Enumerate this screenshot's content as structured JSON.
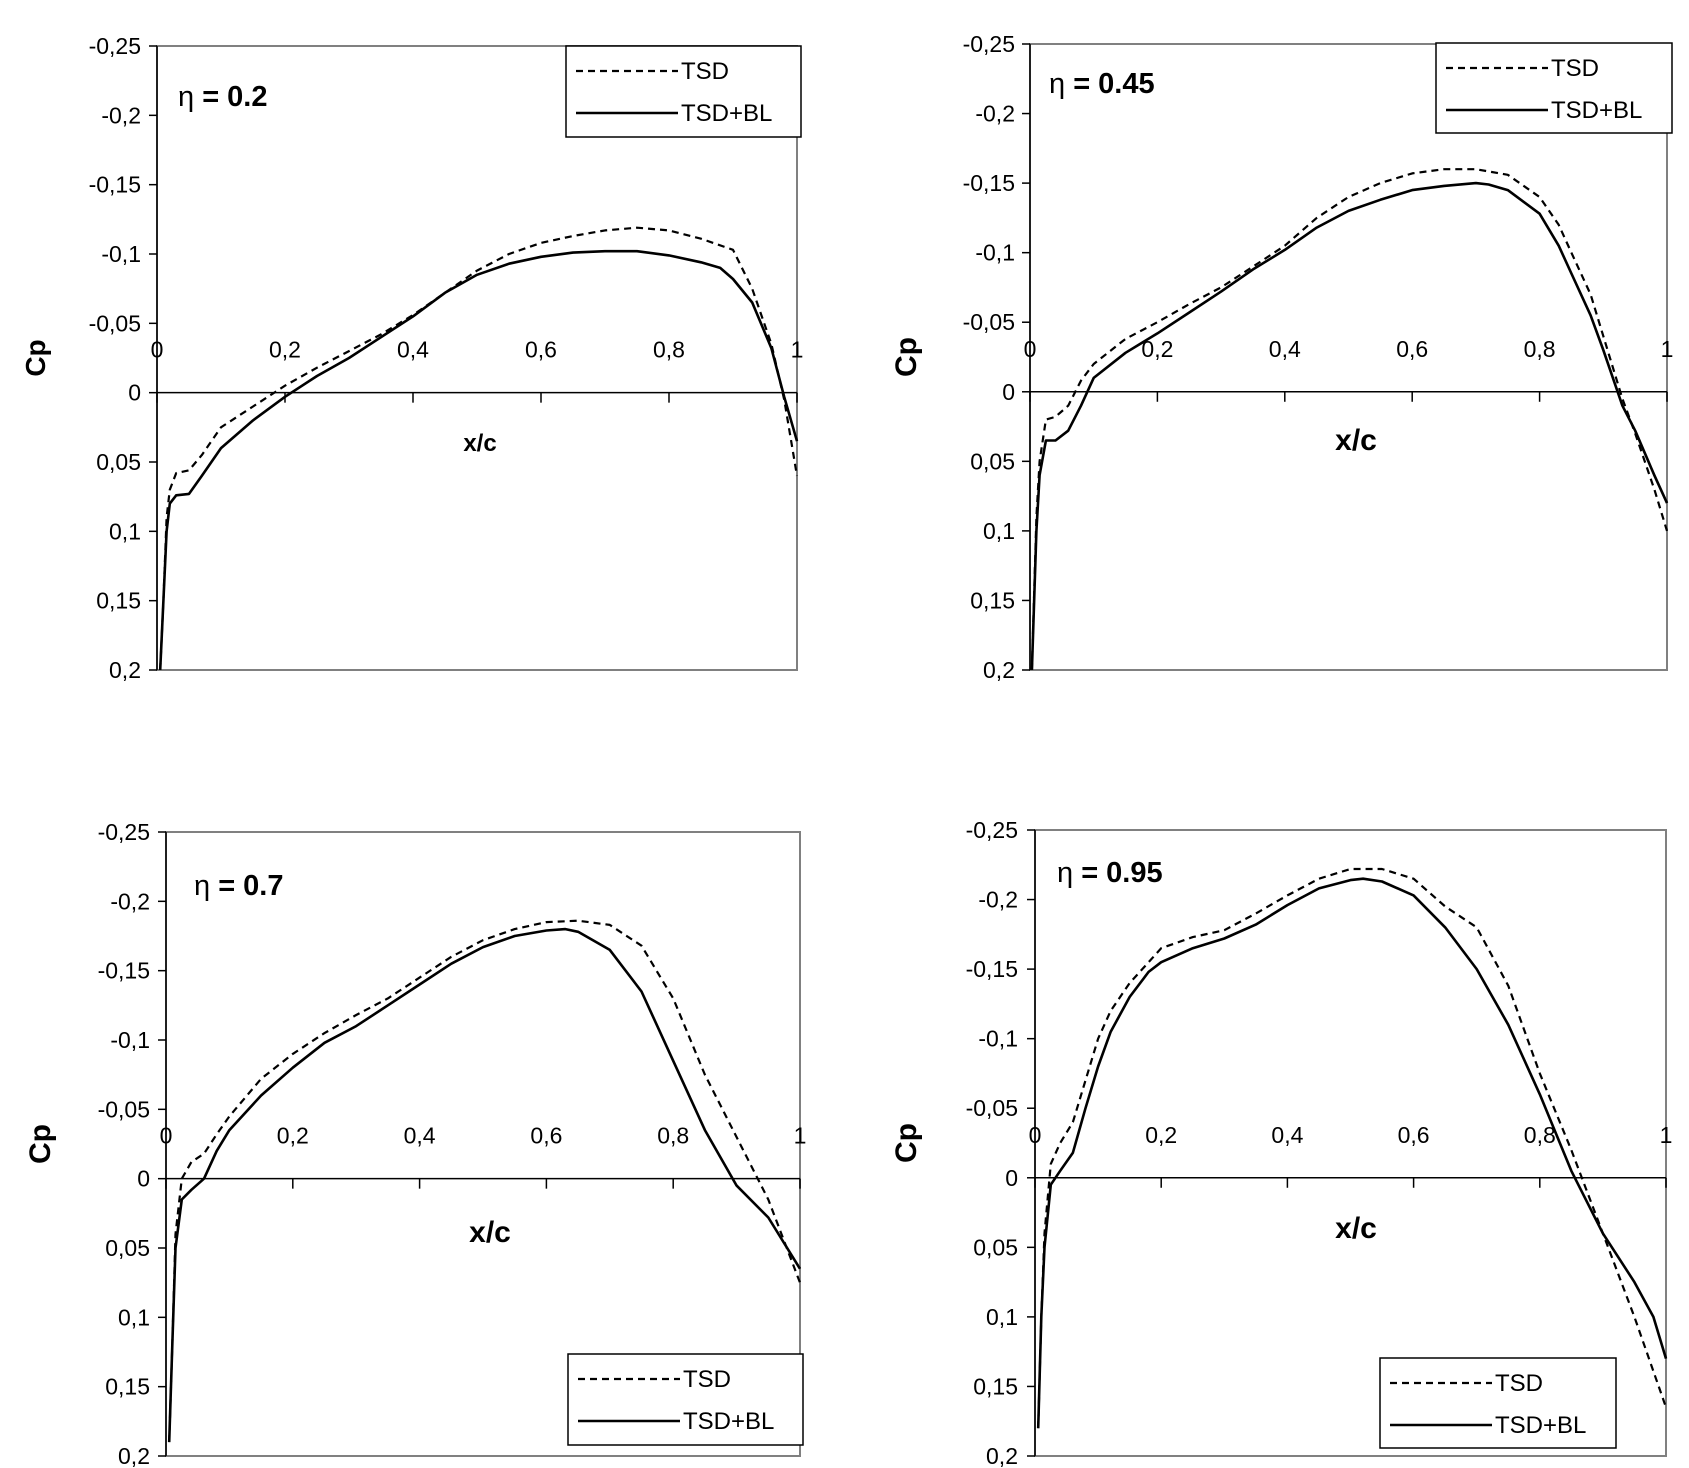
{
  "chart_data": [
    {
      "type": "line",
      "panel_label": "η = 0.2",
      "xlabel": "x/c",
      "ylabel": "Cp",
      "xlim": [
        0,
        1
      ],
      "ylim": [
        0.2,
        -0.25
      ],
      "y_inverted": true,
      "x_ticks": [
        "0",
        "0,2",
        "0,4",
        "0,6",
        "0,8",
        "1"
      ],
      "y_ticks": [
        "-0,25",
        "-0,2",
        "-0,15",
        "-0,1",
        "-0,05",
        "0",
        "0,05",
        "0,1",
        "0,15",
        "0,2"
      ],
      "legend_position": "top-right",
      "grid": false,
      "series": [
        {
          "name": "TSD",
          "style": "dashed",
          "x": [
            0.005,
            0.01,
            0.015,
            0.02,
            0.03,
            0.05,
            0.07,
            0.1,
            0.15,
            0.2,
            0.25,
            0.3,
            0.35,
            0.4,
            0.45,
            0.5,
            0.55,
            0.6,
            0.65,
            0.7,
            0.75,
            0.8,
            0.85,
            0.9,
            0.93,
            0.96,
            0.98,
            1.0
          ],
          "y": [
            0.2,
            0.15,
            0.09,
            0.07,
            0.058,
            0.056,
            0.045,
            0.025,
            0.01,
            -0.005,
            -0.018,
            -0.03,
            -0.042,
            -0.056,
            -0.072,
            -0.088,
            -0.1,
            -0.108,
            -0.113,
            -0.117,
            -0.119,
            -0.117,
            -0.111,
            -0.103,
            -0.075,
            -0.035,
            0.005,
            0.06
          ]
        },
        {
          "name": "TSD+BL",
          "style": "solid",
          "x": [
            0.005,
            0.01,
            0.015,
            0.02,
            0.03,
            0.05,
            0.07,
            0.1,
            0.15,
            0.2,
            0.25,
            0.3,
            0.35,
            0.4,
            0.45,
            0.5,
            0.55,
            0.6,
            0.65,
            0.7,
            0.75,
            0.8,
            0.85,
            0.88,
            0.9,
            0.93,
            0.96,
            0.98,
            1.0
          ],
          "y": [
            0.2,
            0.15,
            0.1,
            0.08,
            0.074,
            0.073,
            0.06,
            0.04,
            0.02,
            0.003,
            -0.012,
            -0.025,
            -0.04,
            -0.055,
            -0.072,
            -0.085,
            -0.093,
            -0.098,
            -0.101,
            -0.102,
            -0.102,
            -0.099,
            -0.094,
            -0.09,
            -0.082,
            -0.065,
            -0.032,
            0.003,
            0.035
          ]
        }
      ]
    },
    {
      "type": "line",
      "panel_label": "η = 0.45",
      "xlabel": "x/c",
      "ylabel": "Cp",
      "xlim": [
        0,
        1
      ],
      "ylim": [
        0.2,
        -0.25
      ],
      "y_inverted": true,
      "x_ticks": [
        "0",
        "0,2",
        "0,4",
        "0,6",
        "0,8",
        "1"
      ],
      "y_ticks": [
        "-0,25",
        "-0,2",
        "-0,15",
        "-0,1",
        "-0,05",
        "0",
        "0,05",
        "0,1",
        "0,15",
        "0,2"
      ],
      "legend_position": "top-right",
      "grid": false,
      "series": [
        {
          "name": "TSD",
          "style": "dashed",
          "x": [
            0.003,
            0.01,
            0.015,
            0.025,
            0.04,
            0.06,
            0.08,
            0.1,
            0.15,
            0.2,
            0.25,
            0.3,
            0.35,
            0.4,
            0.45,
            0.5,
            0.55,
            0.6,
            0.65,
            0.7,
            0.75,
            0.8,
            0.83,
            0.85,
            0.88,
            0.9,
            0.93,
            0.95,
            0.98,
            1.0
          ],
          "y": [
            0.2,
            0.09,
            0.05,
            0.02,
            0.018,
            0.01,
            -0.008,
            -0.02,
            -0.038,
            -0.05,
            -0.063,
            -0.075,
            -0.09,
            -0.105,
            -0.125,
            -0.14,
            -0.15,
            -0.157,
            -0.16,
            -0.16,
            -0.156,
            -0.14,
            -0.12,
            -0.1,
            -0.07,
            -0.04,
            0.005,
            0.03,
            0.07,
            0.1
          ]
        },
        {
          "name": "TSD+BL",
          "style": "solid",
          "x": [
            0.003,
            0.01,
            0.015,
            0.025,
            0.04,
            0.06,
            0.08,
            0.1,
            0.15,
            0.2,
            0.25,
            0.3,
            0.35,
            0.4,
            0.45,
            0.5,
            0.55,
            0.6,
            0.65,
            0.7,
            0.72,
            0.75,
            0.8,
            0.83,
            0.85,
            0.88,
            0.9,
            0.93,
            0.95,
            0.98,
            1.0
          ],
          "y": [
            0.2,
            0.1,
            0.06,
            0.035,
            0.035,
            0.028,
            0.01,
            -0.01,
            -0.028,
            -0.042,
            -0.057,
            -0.072,
            -0.088,
            -0.102,
            -0.118,
            -0.13,
            -0.138,
            -0.145,
            -0.148,
            -0.15,
            -0.149,
            -0.145,
            -0.128,
            -0.105,
            -0.085,
            -0.055,
            -0.03,
            0.01,
            0.028,
            0.06,
            0.08
          ]
        }
      ]
    },
    {
      "type": "line",
      "panel_label": "η = 0.7",
      "xlabel": "x/c",
      "ylabel": "Cp",
      "xlim": [
        0,
        1
      ],
      "ylim": [
        0.2,
        -0.25
      ],
      "y_inverted": true,
      "x_ticks": [
        "0",
        "0,2",
        "0,4",
        "0,6",
        "0,8",
        "1"
      ],
      "y_ticks": [
        "-0,25",
        "-0,2",
        "-0,15",
        "-0,1",
        "-0,05",
        "0",
        "0,05",
        "0,1",
        "0,15",
        "0,2"
      ],
      "legend_position": "bottom-right",
      "grid": false,
      "series": [
        {
          "name": "TSD",
          "style": "dashed",
          "x": [
            0.005,
            0.01,
            0.015,
            0.025,
            0.04,
            0.06,
            0.08,
            0.1,
            0.15,
            0.2,
            0.25,
            0.3,
            0.35,
            0.4,
            0.45,
            0.5,
            0.55,
            0.6,
            0.65,
            0.7,
            0.75,
            0.8,
            0.85,
            0.9,
            0.95,
            1.0
          ],
          "y": [
            0.19,
            0.12,
            0.04,
            0.0,
            -0.012,
            -0.018,
            -0.032,
            -0.045,
            -0.072,
            -0.09,
            -0.105,
            -0.118,
            -0.13,
            -0.145,
            -0.16,
            -0.172,
            -0.18,
            -0.185,
            -0.186,
            -0.183,
            -0.168,
            -0.13,
            -0.075,
            -0.03,
            0.015,
            0.075
          ]
        },
        {
          "name": "TSD+BL",
          "style": "solid",
          "x": [
            0.005,
            0.01,
            0.015,
            0.025,
            0.04,
            0.06,
            0.08,
            0.1,
            0.15,
            0.2,
            0.25,
            0.3,
            0.35,
            0.4,
            0.45,
            0.5,
            0.55,
            0.6,
            0.63,
            0.65,
            0.7,
            0.75,
            0.8,
            0.85,
            0.9,
            0.95,
            1.0
          ],
          "y": [
            0.19,
            0.12,
            0.05,
            0.015,
            0.008,
            0.0,
            -0.02,
            -0.035,
            -0.06,
            -0.08,
            -0.098,
            -0.11,
            -0.125,
            -0.14,
            -0.155,
            -0.167,
            -0.175,
            -0.179,
            -0.18,
            -0.178,
            -0.165,
            -0.135,
            -0.085,
            -0.035,
            0.005,
            0.028,
            0.065
          ]
        }
      ]
    },
    {
      "type": "line",
      "panel_label": "η = 0.95",
      "xlabel": "x/c",
      "ylabel": "Cp",
      "xlim": [
        0,
        1
      ],
      "ylim": [
        0.2,
        -0.25
      ],
      "y_inverted": true,
      "x_ticks": [
        "0",
        "0,2",
        "0,4",
        "0,6",
        "0,8",
        "1"
      ],
      "y_ticks": [
        "-0,25",
        "-0,2",
        "-0,15",
        "-0,1",
        "-0,05",
        "0",
        "0,05",
        "0,1",
        "0,15",
        "0,2"
      ],
      "legend_position": "bottom-right",
      "grid": false,
      "series": [
        {
          "name": "TSD",
          "style": "dashed",
          "x": [
            0.005,
            0.01,
            0.015,
            0.025,
            0.04,
            0.06,
            0.08,
            0.1,
            0.12,
            0.15,
            0.18,
            0.2,
            0.25,
            0.3,
            0.35,
            0.4,
            0.45,
            0.5,
            0.55,
            0.6,
            0.65,
            0.7,
            0.75,
            0.8,
            0.85,
            0.9,
            0.95,
            1.0
          ],
          "y": [
            0.18,
            0.1,
            0.04,
            -0.01,
            -0.025,
            -0.04,
            -0.07,
            -0.1,
            -0.12,
            -0.14,
            -0.155,
            -0.165,
            -0.173,
            -0.178,
            -0.19,
            -0.203,
            -0.215,
            -0.222,
            -0.222,
            -0.215,
            -0.195,
            -0.18,
            -0.138,
            -0.075,
            -0.02,
            0.04,
            0.1,
            0.165
          ]
        },
        {
          "name": "TSD+BL",
          "style": "solid",
          "x": [
            0.005,
            0.01,
            0.015,
            0.025,
            0.04,
            0.06,
            0.08,
            0.1,
            0.12,
            0.15,
            0.18,
            0.2,
            0.25,
            0.3,
            0.35,
            0.4,
            0.45,
            0.5,
            0.52,
            0.55,
            0.6,
            0.65,
            0.7,
            0.75,
            0.8,
            0.85,
            0.9,
            0.95,
            0.98,
            1.0
          ],
          "y": [
            0.18,
            0.1,
            0.05,
            0.005,
            -0.005,
            -0.018,
            -0.05,
            -0.08,
            -0.105,
            -0.13,
            -0.148,
            -0.155,
            -0.165,
            -0.172,
            -0.182,
            -0.196,
            -0.208,
            -0.214,
            -0.215,
            -0.213,
            -0.203,
            -0.18,
            -0.15,
            -0.11,
            -0.06,
            -0.005,
            0.04,
            0.075,
            0.1,
            0.13
          ]
        }
      ]
    }
  ]
}
